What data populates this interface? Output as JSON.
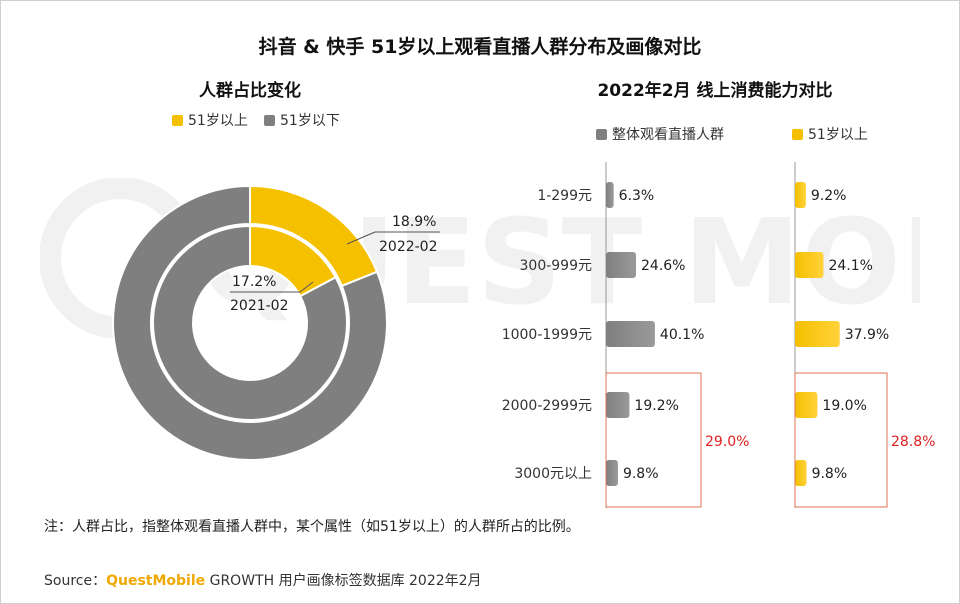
{
  "title": "抖音 & 快手 51岁以上观看直播人群分布及画像对比",
  "left_chart_title": "人群占比变化",
  "right_chart_title": "2022年2月 线上消费能力对比",
  "note": "注：人群占比，指整体观看直播人群中，某个属性（如51岁以上）的人群所占的比例。",
  "source": {
    "prefix": "Source：",
    "brand": "QuestMobile",
    "suffix": " GROWTH 用户画像标签数据库 2022年2月"
  },
  "watermark": "QUEST MOBILE",
  "colors": {
    "yellow": "#f5c000",
    "gray": "#7f7f7f",
    "red": "#e02020",
    "box": "#e07050"
  },
  "chart_data": [
    {
      "type": "pie",
      "variant": "nested-donut",
      "legend": [
        "51岁以上",
        "51岁以下"
      ],
      "rings": [
        {
          "period": "2022-02",
          "position": "outer",
          "label": "2022-02",
          "value_label": "18.9%",
          "values": [
            18.9,
            81.1
          ]
        },
        {
          "period": "2021-02",
          "position": "inner",
          "label": "2021-02",
          "value_label": "17.2%",
          "values": [
            17.2,
            82.8
          ]
        }
      ]
    },
    {
      "type": "bar",
      "orientation": "horizontal",
      "categories": [
        "1-299元",
        "300-999元",
        "1000-1999元",
        "2000-2999元",
        "3000元以上"
      ],
      "series": [
        {
          "name": "整体观看直播人群",
          "color": "#7f7f7f",
          "values": [
            6.3,
            24.6,
            40.1,
            19.2,
            9.8
          ],
          "labels": [
            "6.3%",
            "24.6%",
            "40.1%",
            "19.2%",
            "9.8%"
          ],
          "highlight_total": "29.0%"
        },
        {
          "name": "51岁以上",
          "color": "#f5c000",
          "values": [
            9.2,
            24.1,
            37.9,
            19.0,
            9.8
          ],
          "labels": [
            "9.2%",
            "24.1%",
            "37.9%",
            "19.0%",
            "9.8%"
          ],
          "highlight_total": "28.8%"
        }
      ],
      "highlight_categories": [
        "2000-2999元",
        "3000元以上"
      ],
      "xlim": [
        0,
        100
      ]
    }
  ]
}
